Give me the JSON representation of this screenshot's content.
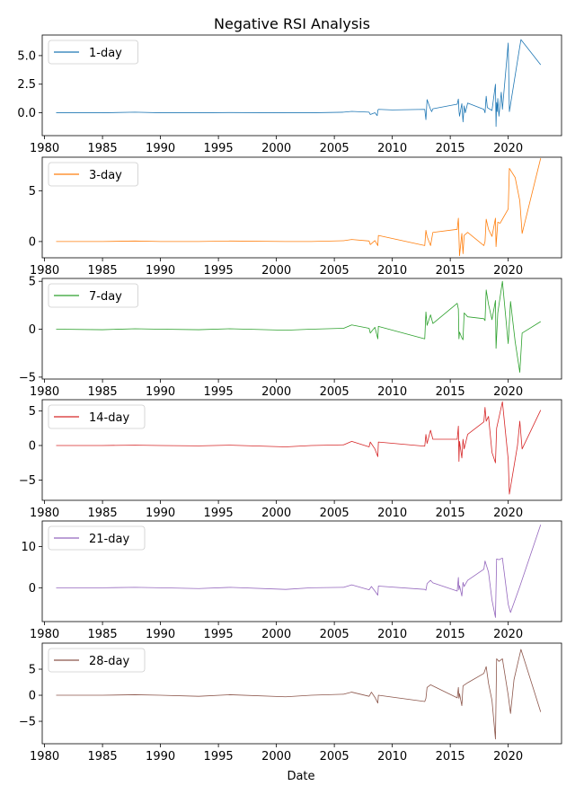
{
  "chart_data": {
    "type": "line",
    "title": "Negative RSI Analysis",
    "xlabel": "Date",
    "xlim": [
      1979.8,
      2024.6
    ],
    "x_ticks": [
      1980,
      1985,
      1990,
      1995,
      2000,
      2005,
      2010,
      2015,
      2020
    ],
    "grid": false,
    "legend_position": "upper-left",
    "panels": [
      {
        "name": "1-day",
        "color": "#1f77b4",
        "ylim": [
          -2.0,
          6.8
        ],
        "y_ticks": [
          0.0,
          2.5,
          5.0
        ],
        "y_tick_labels": [
          "0.0",
          "2.5",
          "5.0"
        ],
        "x": [
          1981.0,
          1985.0,
          1987.8,
          1990.0,
          1993.3,
          1996.0,
          2000.8,
          2003.0,
          2005.8,
          2006.5,
          2008.0,
          2008.1,
          2008.5,
          2008.7,
          2008.75,
          2008.8,
          2010.0,
          2012.8,
          2012.9,
          2013.0,
          2013.3,
          2013.4,
          2013.5,
          2015.6,
          2015.7,
          2015.75,
          2015.8,
          2016.0,
          2016.1,
          2016.2,
          2016.3,
          2016.5,
          2017.9,
          2018.0,
          2018.1,
          2018.2,
          2018.6,
          2018.9,
          2018.95,
          2019.0,
          2019.05,
          2019.1,
          2019.2,
          2019.4,
          2019.5,
          2020.0,
          2020.1,
          2021.0,
          2021.1,
          2022.8
        ],
        "values": [
          0.0,
          0.0,
          0.05,
          0.0,
          0.0,
          0.02,
          0.0,
          0.0,
          0.05,
          0.12,
          0.05,
          -0.15,
          0.0,
          -0.25,
          0.2,
          0.3,
          0.25,
          0.3,
          -0.6,
          1.15,
          0.3,
          0.1,
          0.35,
          0.75,
          1.2,
          0.2,
          -0.3,
          0.8,
          -0.8,
          0.6,
          0.0,
          0.85,
          0.3,
          0.0,
          1.45,
          0.45,
          0.2,
          2.5,
          -1.2,
          0.9,
          0.1,
          1.25,
          -0.3,
          1.8,
          0.3,
          6.1,
          0.1,
          5.8,
          6.4,
          4.2
        ]
      },
      {
        "name": "3-day",
        "color": "#ff7f0e",
        "ylim": [
          -1.6,
          8.3
        ],
        "y_ticks": [
          0,
          5
        ],
        "y_tick_labels": [
          "0",
          "5"
        ],
        "x": [
          1981.0,
          1985.0,
          1987.8,
          1990.0,
          1993.3,
          1996.0,
          2000.8,
          2003.0,
          2005.8,
          2006.5,
          2008.0,
          2008.1,
          2008.5,
          2008.75,
          2008.8,
          2012.8,
          2012.9,
          2013.0,
          2013.3,
          2013.5,
          2015.6,
          2015.7,
          2015.75,
          2015.8,
          2016.0,
          2016.1,
          2016.2,
          2016.5,
          2017.9,
          2018.0,
          2018.1,
          2018.3,
          2018.6,
          2018.9,
          2018.95,
          2019.1,
          2019.3,
          2019.5,
          2020.0,
          2020.1,
          2020.6,
          2021.0,
          2021.2,
          2022.8
        ],
        "values": [
          0.0,
          0.0,
          0.05,
          0.0,
          0.0,
          0.05,
          0.0,
          0.0,
          0.08,
          0.2,
          0.05,
          -0.3,
          0.1,
          -0.4,
          0.6,
          -0.4,
          1.1,
          0.5,
          -0.4,
          0.9,
          1.2,
          2.3,
          0.4,
          -1.4,
          0.8,
          -1.2,
          0.6,
          0.9,
          -0.4,
          0.0,
          2.2,
          1.2,
          0.5,
          2.3,
          -0.5,
          1.9,
          1.8,
          2.2,
          3.2,
          7.2,
          6.3,
          4.0,
          0.8,
          8.2
        ]
      },
      {
        "name": "7-day",
        "color": "#2ca02c",
        "ylim": [
          -5.2,
          5.3
        ],
        "y_ticks": [
          -5,
          0,
          5
        ],
        "y_tick_labels": [
          "−5",
          "0",
          "5"
        ],
        "x": [
          1981.0,
          1985.0,
          1987.8,
          1990.0,
          1993.3,
          1996.0,
          2000.8,
          2003.0,
          2005.8,
          2006.5,
          2008.0,
          2008.1,
          2008.5,
          2008.75,
          2008.8,
          2012.8,
          2012.9,
          2013.0,
          2013.3,
          2013.5,
          2015.6,
          2015.7,
          2015.75,
          2015.8,
          2016.0,
          2016.1,
          2016.2,
          2016.5,
          2017.9,
          2018.0,
          2018.1,
          2018.3,
          2018.6,
          2018.9,
          2018.95,
          2019.1,
          2019.5,
          2020.0,
          2020.2,
          2020.6,
          2021.0,
          2021.2,
          2022.8
        ],
        "values": [
          0.0,
          -0.05,
          0.05,
          0.0,
          -0.05,
          0.05,
          -0.1,
          0.0,
          0.1,
          0.45,
          0.1,
          -0.4,
          0.2,
          -1.0,
          0.3,
          -1.0,
          1.8,
          0.4,
          1.5,
          0.6,
          2.7,
          2.1,
          -1.0,
          -0.3,
          -0.9,
          -1.1,
          1.7,
          1.3,
          1.1,
          0.9,
          4.1,
          2.6,
          1.0,
          3.0,
          -2.0,
          1.7,
          5.0,
          -1.5,
          2.9,
          -1.3,
          -4.5,
          -0.4,
          0.8
        ]
      },
      {
        "name": "14-day",
        "color": "#d62728",
        "ylim": [
          -7.9,
          6.6
        ],
        "y_ticks": [
          -5,
          0,
          5
        ],
        "y_tick_labels": [
          "−5",
          "0",
          "5"
        ],
        "x": [
          1981.0,
          1985.0,
          1987.8,
          1990.0,
          1993.3,
          1996.0,
          2000.8,
          2003.0,
          2005.8,
          2006.5,
          2008.0,
          2008.1,
          2008.5,
          2008.75,
          2008.8,
          2012.8,
          2012.9,
          2013.0,
          2013.3,
          2013.5,
          2015.6,
          2015.7,
          2015.75,
          2015.8,
          2016.0,
          2016.1,
          2016.2,
          2016.5,
          2017.9,
          2018.0,
          2018.1,
          2018.3,
          2018.6,
          2018.9,
          2019.0,
          2019.5,
          2020.0,
          2020.1,
          2020.8,
          2021.0,
          2021.2,
          2022.8
        ],
        "values": [
          0.0,
          0.0,
          0.05,
          0.0,
          -0.05,
          0.05,
          -0.2,
          0.0,
          0.1,
          0.6,
          -0.2,
          0.5,
          -0.5,
          -1.6,
          0.5,
          -0.1,
          1.6,
          0.3,
          2.2,
          0.9,
          0.9,
          2.8,
          -2.3,
          0.6,
          -1.8,
          0.9,
          -0.5,
          1.6,
          3.4,
          5.5,
          3.5,
          4.2,
          -1.0,
          -2.5,
          2.5,
          6.3,
          -2.0,
          -7.0,
          0.0,
          3.5,
          -0.5,
          5.1
        ]
      },
      {
        "name": "21-day",
        "color": "#9467bd",
        "ylim": [
          -8.2,
          16.2
        ],
        "y_ticks": [
          0,
          10
        ],
        "y_tick_labels": [
          "0",
          "10"
        ],
        "x": [
          1981.0,
          1985.0,
          1987.8,
          1990.0,
          1993.3,
          1996.0,
          2000.8,
          2003.0,
          2005.8,
          2006.5,
          2008.0,
          2008.2,
          2008.5,
          2008.75,
          2008.8,
          2012.8,
          2012.9,
          2013.0,
          2013.3,
          2013.5,
          2015.6,
          2015.7,
          2015.75,
          2015.8,
          2016.0,
          2016.1,
          2016.2,
          2016.5,
          2017.9,
          2018.0,
          2018.3,
          2018.6,
          2018.9,
          2019.0,
          2019.2,
          2019.5,
          2020.0,
          2020.2,
          2021.0,
          2022.8
        ],
        "values": [
          0.0,
          0.0,
          0.1,
          0.0,
          -0.2,
          0.1,
          -0.4,
          0.0,
          0.1,
          0.7,
          -0.5,
          0.3,
          -0.8,
          -1.8,
          0.4,
          -0.4,
          -0.6,
          1.0,
          1.8,
          1.2,
          -0.8,
          2.5,
          -0.5,
          0.5,
          -2.0,
          1.3,
          0.3,
          1.8,
          4.5,
          6.5,
          3.8,
          -3.0,
          -7.2,
          7.0,
          6.8,
          7.2,
          -4.0,
          -6.0,
          0.3,
          15.3
        ]
      },
      {
        "name": "28-day",
        "color": "#8c564b",
        "ylim": [
          -9.3,
          10.0
        ],
        "y_ticks": [
          -5,
          0,
          5
        ],
        "y_tick_labels": [
          "−5",
          "0",
          "5"
        ],
        "x": [
          1981.0,
          1985.0,
          1987.8,
          1990.0,
          1993.3,
          1996.0,
          2000.8,
          2003.0,
          2005.8,
          2006.5,
          2008.0,
          2008.2,
          2008.5,
          2008.75,
          2008.8,
          2012.8,
          2012.9,
          2013.0,
          2013.3,
          2013.5,
          2015.6,
          2015.7,
          2015.75,
          2015.8,
          2016.0,
          2016.1,
          2016.5,
          2017.9,
          2018.1,
          2018.3,
          2018.6,
          2018.9,
          2019.0,
          2019.2,
          2019.5,
          2020.0,
          2020.2,
          2020.5,
          2021.1,
          2021.5,
          2022.8
        ],
        "values": [
          0.0,
          0.0,
          0.1,
          0.0,
          -0.2,
          0.1,
          -0.3,
          0.0,
          0.2,
          0.6,
          -0.2,
          0.6,
          -0.4,
          -1.5,
          0.0,
          -1.2,
          -0.6,
          1.5,
          2.0,
          1.8,
          -0.5,
          1.5,
          -0.6,
          0.3,
          -2.0,
          1.8,
          2.4,
          4.2,
          5.5,
          2.3,
          -1.0,
          -8.4,
          7.0,
          6.5,
          7.0,
          0.0,
          -3.5,
          3.0,
          8.8,
          6.0,
          -3.2
        ]
      }
    ]
  }
}
